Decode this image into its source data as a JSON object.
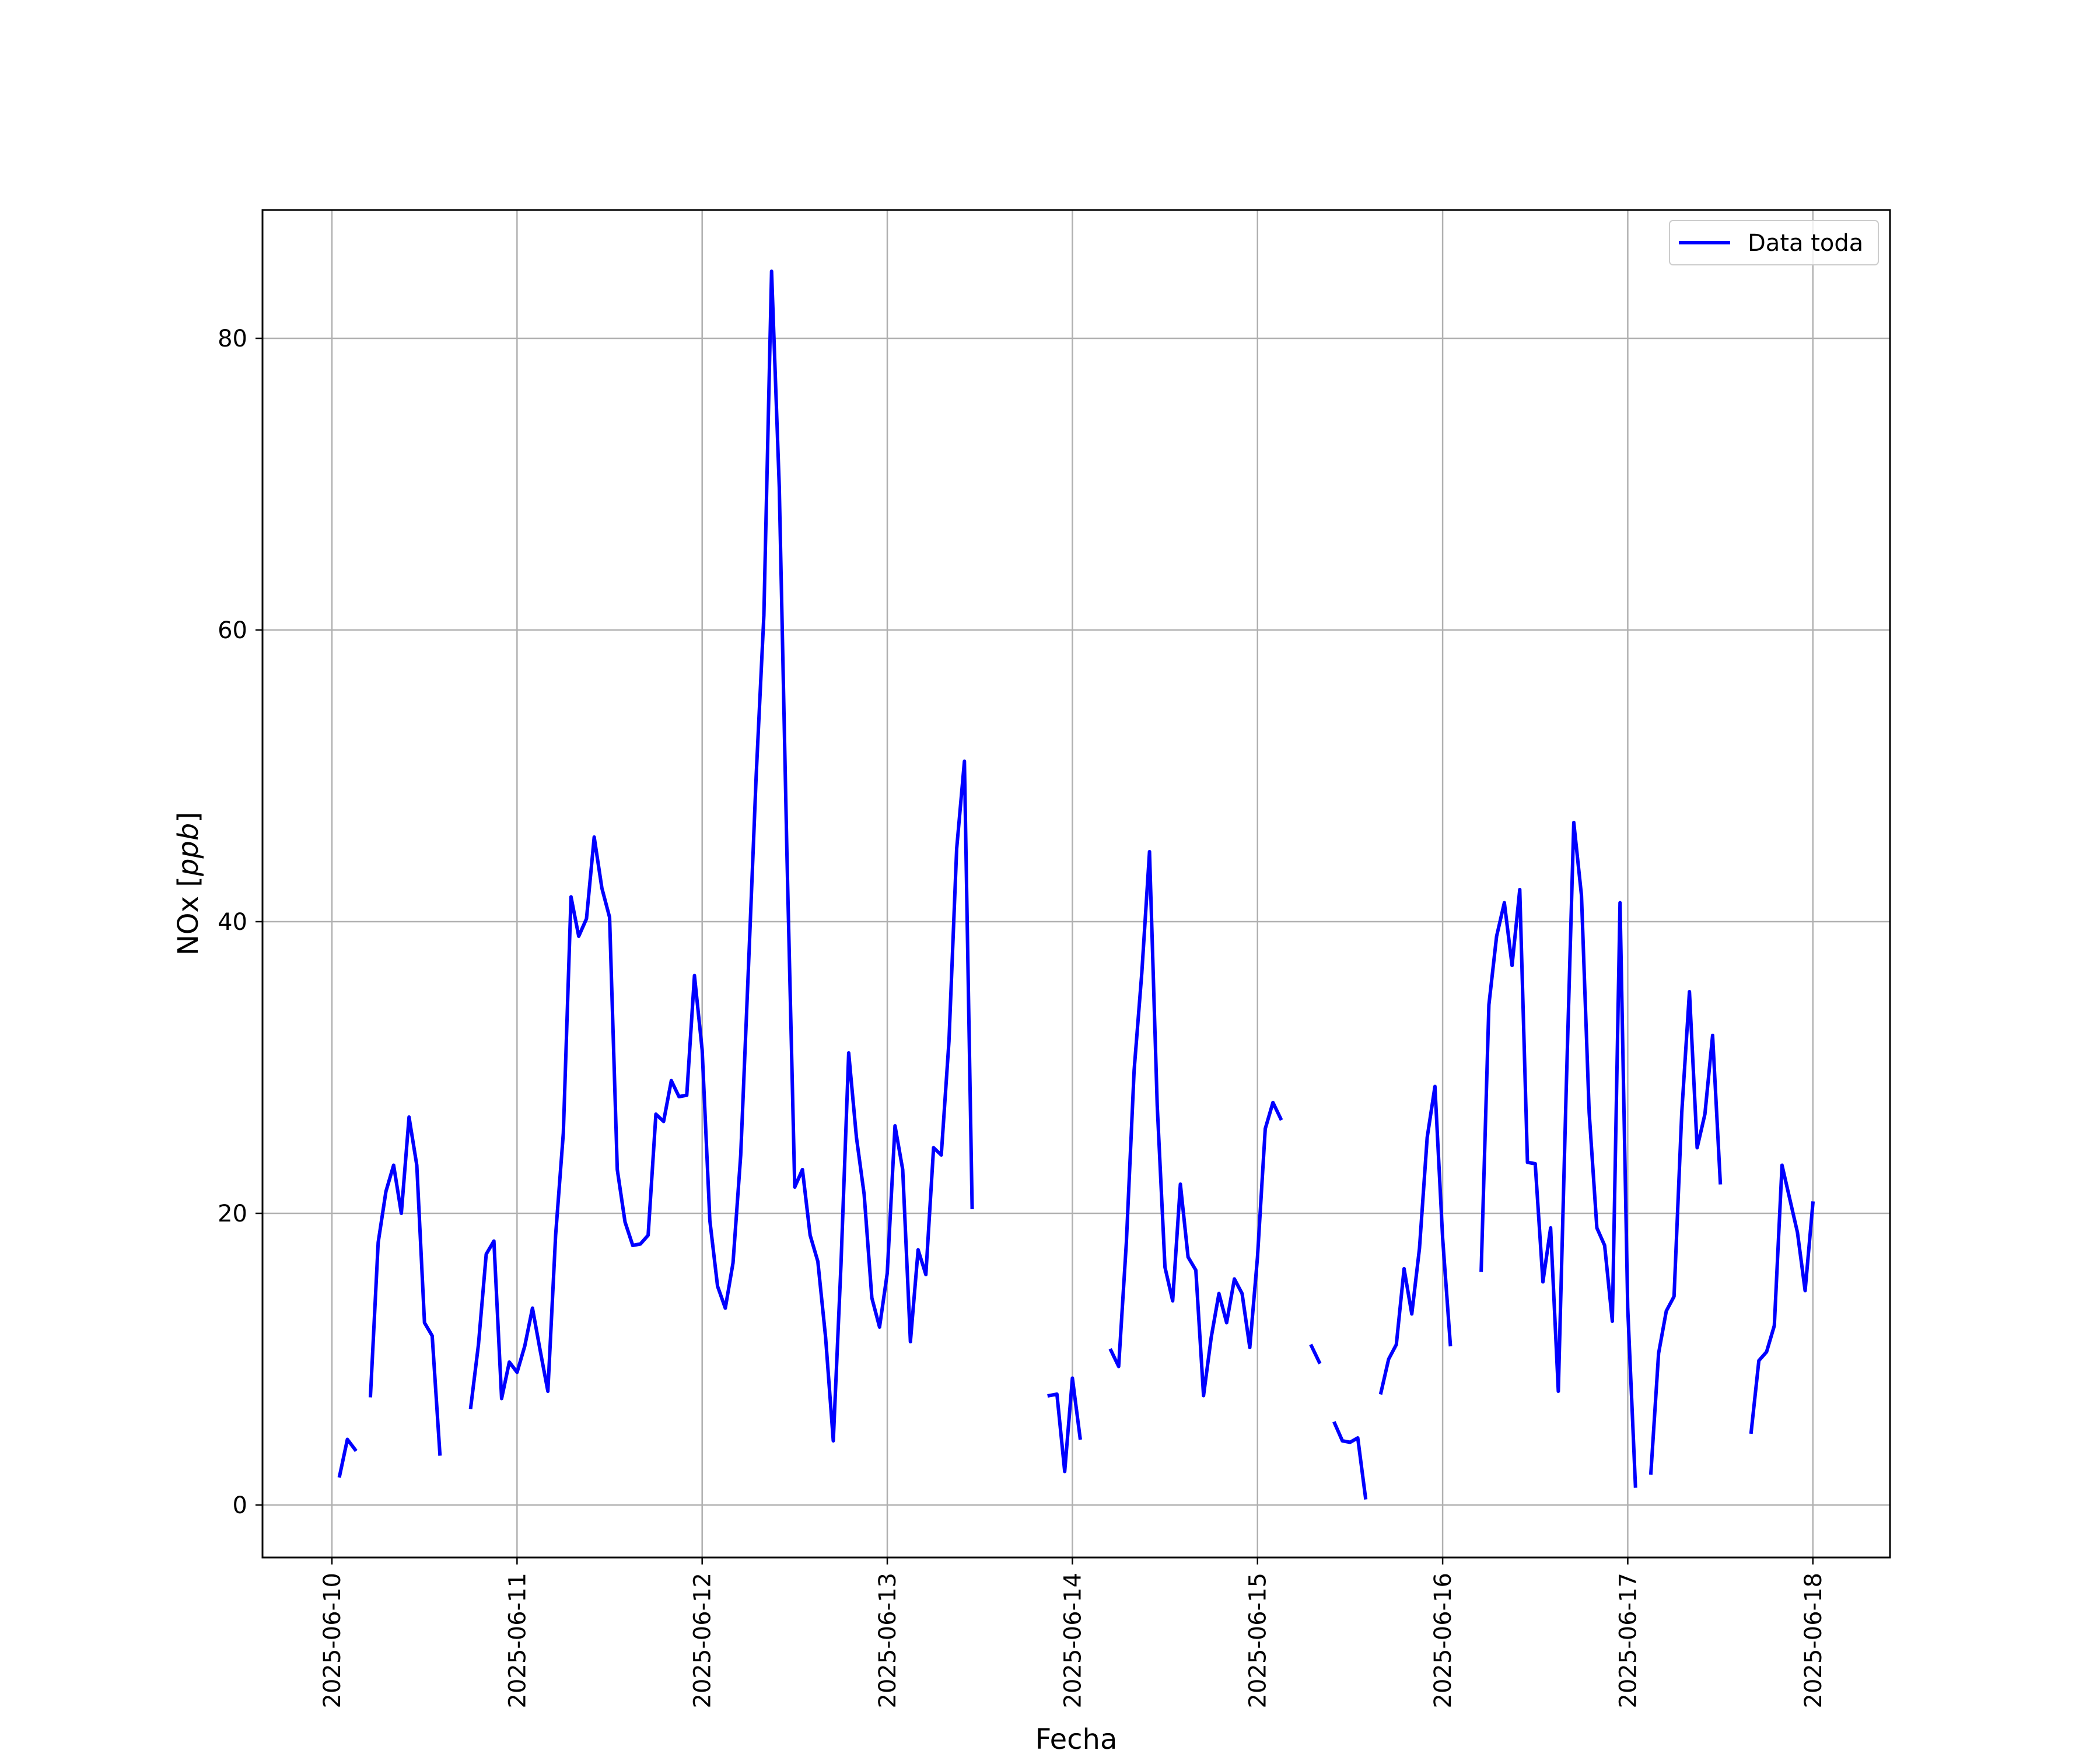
{
  "chart_data": {
    "type": "line",
    "title": "",
    "xlabel": "Fecha",
    "ylabel_prefix": "NOx [",
    "ylabel_unit": "ppb",
    "ylabel_suffix": "]",
    "ylim": [
      -3.6,
      88.8
    ],
    "xlim": [
      "2025-06-09T15:00",
      "2025-06-18T10:00"
    ],
    "grid": true,
    "legend_position": "top-right",
    "y_ticks": [
      0,
      20,
      40,
      60,
      80
    ],
    "x_ticks": [
      "2025-06-10",
      "2025-06-11",
      "2025-06-12",
      "2025-06-13",
      "2025-06-14",
      "2025-06-15",
      "2025-06-16",
      "2025-06-17",
      "2025-06-18"
    ],
    "series": [
      {
        "name": "Data toda",
        "color": "#0000ff",
        "points": [
          [
            "2025-06-10T01:00",
            2.0
          ],
          [
            "2025-06-10T02:00",
            4.5
          ],
          [
            "2025-06-10T03:00",
            3.8
          ],
          [
            "2025-06-10T04:00",
            null
          ],
          [
            "2025-06-10T05:00",
            7.5
          ],
          [
            "2025-06-10T06:00",
            18.0
          ],
          [
            "2025-06-10T07:00",
            21.5
          ],
          [
            "2025-06-10T08:00",
            23.3
          ],
          [
            "2025-06-10T09:00",
            20.0
          ],
          [
            "2025-06-10T10:00",
            26.6
          ],
          [
            "2025-06-10T11:00",
            23.3
          ],
          [
            "2025-06-10T12:00",
            12.5
          ],
          [
            "2025-06-10T13:00",
            11.6
          ],
          [
            "2025-06-10T14:00",
            3.5
          ],
          [
            "2025-06-10T15:00",
            null
          ],
          [
            "2025-06-10T18:00",
            6.7
          ],
          [
            "2025-06-10T19:00",
            11.0
          ],
          [
            "2025-06-10T20:00",
            17.2
          ],
          [
            "2025-06-10T21:00",
            18.1
          ],
          [
            "2025-06-10T22:00",
            7.3
          ],
          [
            "2025-06-10T23:00",
            9.8
          ],
          [
            "2025-06-11T00:00",
            9.1
          ],
          [
            "2025-06-11T01:00",
            10.9
          ],
          [
            "2025-06-11T02:00",
            13.5
          ],
          [
            "2025-06-11T03:00",
            10.6
          ],
          [
            "2025-06-11T04:00",
            7.8
          ],
          [
            "2025-06-11T05:00",
            18.5
          ],
          [
            "2025-06-11T06:00",
            25.5
          ],
          [
            "2025-06-11T07:00",
            41.7
          ],
          [
            "2025-06-11T08:00",
            39.0
          ],
          [
            "2025-06-11T09:00",
            40.2
          ],
          [
            "2025-06-11T10:00",
            45.8
          ],
          [
            "2025-06-11T11:00",
            42.3
          ],
          [
            "2025-06-11T12:00",
            40.3
          ],
          [
            "2025-06-11T13:00",
            23.0
          ],
          [
            "2025-06-11T14:00",
            19.4
          ],
          [
            "2025-06-11T15:00",
            17.8
          ],
          [
            "2025-06-11T16:00",
            17.9
          ],
          [
            "2025-06-11T17:00",
            18.5
          ],
          [
            "2025-06-11T18:00",
            26.8
          ],
          [
            "2025-06-11T19:00",
            26.3
          ],
          [
            "2025-06-11T20:00",
            29.1
          ],
          [
            "2025-06-11T21:00",
            28.0
          ],
          [
            "2025-06-11T22:00",
            28.1
          ],
          [
            "2025-06-11T23:00",
            36.3
          ],
          [
            "2025-06-12T00:00",
            31.2
          ],
          [
            "2025-06-12T01:00",
            19.5
          ],
          [
            "2025-06-12T02:00",
            15.0
          ],
          [
            "2025-06-12T03:00",
            13.5
          ],
          [
            "2025-06-12T04:00",
            16.6
          ],
          [
            "2025-06-12T05:00",
            24.0
          ],
          [
            "2025-06-12T06:00",
            36.8
          ],
          [
            "2025-06-12T07:00",
            50.0
          ],
          [
            "2025-06-12T08:00",
            61.0
          ],
          [
            "2025-06-12T09:00",
            84.6
          ],
          [
            "2025-06-12T10:00",
            69.8
          ],
          [
            "2025-06-12T11:00",
            44.5
          ],
          [
            "2025-06-12T12:00",
            21.8
          ],
          [
            "2025-06-12T13:00",
            23.0
          ],
          [
            "2025-06-12T14:00",
            18.5
          ],
          [
            "2025-06-12T15:00",
            16.7
          ],
          [
            "2025-06-12T16:00",
            11.5
          ],
          [
            "2025-06-12T17:00",
            4.4
          ],
          [
            "2025-06-12T18:00",
            16.5
          ],
          [
            "2025-06-12T19:00",
            31.0
          ],
          [
            "2025-06-12T20:00",
            25.2
          ],
          [
            "2025-06-12T21:00",
            21.3
          ],
          [
            "2025-06-12T22:00",
            14.2
          ],
          [
            "2025-06-12T23:00",
            12.2
          ],
          [
            "2025-06-13T00:00",
            15.9
          ],
          [
            "2025-06-13T01:00",
            26.0
          ],
          [
            "2025-06-13T02:00",
            23.0
          ],
          [
            "2025-06-13T03:00",
            11.2
          ],
          [
            "2025-06-13T04:00",
            17.5
          ],
          [
            "2025-06-13T05:00",
            15.8
          ],
          [
            "2025-06-13T06:00",
            24.5
          ],
          [
            "2025-06-13T07:00",
            24.0
          ],
          [
            "2025-06-13T08:00",
            31.8
          ],
          [
            "2025-06-13T09:00",
            45.0
          ],
          [
            "2025-06-13T10:00",
            51.0
          ],
          [
            "2025-06-13T11:00",
            20.4
          ],
          [
            "2025-06-13T12:00",
            null
          ],
          [
            "2025-06-13T21:00",
            7.5
          ],
          [
            "2025-06-13T22:00",
            7.6
          ],
          [
            "2025-06-13T23:00",
            2.3
          ],
          [
            "2025-06-14T00:00",
            8.7
          ],
          [
            "2025-06-14T01:00",
            4.6
          ],
          [
            "2025-06-14T02:00",
            null
          ],
          [
            "2025-06-14T05:00",
            10.6
          ],
          [
            "2025-06-14T06:00",
            9.5
          ],
          [
            "2025-06-14T07:00",
            18.0
          ],
          [
            "2025-06-14T08:00",
            29.8
          ],
          [
            "2025-06-14T09:00",
            36.5
          ],
          [
            "2025-06-14T10:00",
            44.8
          ],
          [
            "2025-06-14T11:00",
            27.4
          ],
          [
            "2025-06-14T12:00",
            16.3
          ],
          [
            "2025-06-14T13:00",
            14.0
          ],
          [
            "2025-06-14T14:00",
            22.0
          ],
          [
            "2025-06-14T15:00",
            17.0
          ],
          [
            "2025-06-14T16:00",
            16.1
          ],
          [
            "2025-06-14T17:00",
            7.5
          ],
          [
            "2025-06-14T18:00",
            11.5
          ],
          [
            "2025-06-14T19:00",
            14.5
          ],
          [
            "2025-06-14T20:00",
            12.5
          ],
          [
            "2025-06-14T21:00",
            15.5
          ],
          [
            "2025-06-14T22:00",
            14.5
          ],
          [
            "2025-06-14T23:00",
            10.8
          ],
          [
            "2025-06-15T00:00",
            17.0
          ],
          [
            "2025-06-15T01:00",
            25.8
          ],
          [
            "2025-06-15T02:00",
            27.6
          ],
          [
            "2025-06-15T03:00",
            26.5
          ],
          [
            "2025-06-15T04:00",
            null
          ],
          [
            "2025-06-15T07:00",
            10.9
          ],
          [
            "2025-06-15T08:00",
            9.8
          ],
          [
            "2025-06-15T09:00",
            null
          ],
          [
            "2025-06-15T10:00",
            5.6
          ],
          [
            "2025-06-15T11:00",
            4.4
          ],
          [
            "2025-06-15T12:00",
            4.3
          ],
          [
            "2025-06-15T13:00",
            4.6
          ],
          [
            "2025-06-15T14:00",
            0.5
          ],
          [
            "2025-06-15T15:00",
            null
          ],
          [
            "2025-06-15T16:00",
            7.7
          ],
          [
            "2025-06-15T17:00",
            10.0
          ],
          [
            "2025-06-15T18:00",
            11.0
          ],
          [
            "2025-06-15T19:00",
            16.2
          ],
          [
            "2025-06-15T20:00",
            13.1
          ],
          [
            "2025-06-15T21:00",
            17.6
          ],
          [
            "2025-06-15T22:00",
            25.2
          ],
          [
            "2025-06-15T23:00",
            28.7
          ],
          [
            "2025-06-16T00:00",
            18.3
          ],
          [
            "2025-06-16T01:00",
            11.0
          ],
          [
            "2025-06-16T02:00",
            null
          ],
          [
            "2025-06-16T05:00",
            16.1
          ],
          [
            "2025-06-16T06:00",
            34.3
          ],
          [
            "2025-06-16T07:00",
            39.0
          ],
          [
            "2025-06-16T08:00",
            41.3
          ],
          [
            "2025-06-16T09:00",
            37.0
          ],
          [
            "2025-06-16T10:00",
            42.2
          ],
          [
            "2025-06-16T11:00",
            23.5
          ],
          [
            "2025-06-16T12:00",
            23.4
          ],
          [
            "2025-06-16T13:00",
            15.3
          ],
          [
            "2025-06-16T14:00",
            19.0
          ],
          [
            "2025-06-16T15:00",
            7.8
          ],
          [
            "2025-06-16T16:00",
            28.0
          ],
          [
            "2025-06-16T17:00",
            46.8
          ],
          [
            "2025-06-16T18:00",
            41.8
          ],
          [
            "2025-06-16T19:00",
            26.9
          ],
          [
            "2025-06-16T20:00",
            19.0
          ],
          [
            "2025-06-16T21:00",
            17.8
          ],
          [
            "2025-06-16T22:00",
            12.6
          ],
          [
            "2025-06-16T23:00",
            41.3
          ],
          [
            "2025-06-17T00:00",
            13.5
          ],
          [
            "2025-06-17T01:00",
            1.3
          ],
          [
            "2025-06-17T02:00",
            null
          ],
          [
            "2025-06-17T03:00",
            2.2
          ],
          [
            "2025-06-17T04:00",
            10.4
          ],
          [
            "2025-06-17T05:00",
            13.3
          ],
          [
            "2025-06-17T06:00",
            14.3
          ],
          [
            "2025-06-17T07:00",
            26.9
          ],
          [
            "2025-06-17T08:00",
            35.2
          ],
          [
            "2025-06-17T09:00",
            24.5
          ],
          [
            "2025-06-17T10:00",
            26.8
          ],
          [
            "2025-06-17T11:00",
            32.2
          ],
          [
            "2025-06-17T12:00",
            22.1
          ],
          [
            "2025-06-17T13:00",
            null
          ],
          [
            "2025-06-17T16:00",
            5.0
          ],
          [
            "2025-06-17T17:00",
            9.9
          ],
          [
            "2025-06-17T18:00",
            10.5
          ],
          [
            "2025-06-17T19:00",
            12.3
          ],
          [
            "2025-06-17T20:00",
            23.3
          ],
          [
            "2025-06-17T21:00",
            21.0
          ],
          [
            "2025-06-17T22:00",
            18.7
          ],
          [
            "2025-06-17T23:00",
            14.7
          ],
          [
            "2025-06-18T00:00",
            20.7
          ]
        ]
      }
    ]
  }
}
